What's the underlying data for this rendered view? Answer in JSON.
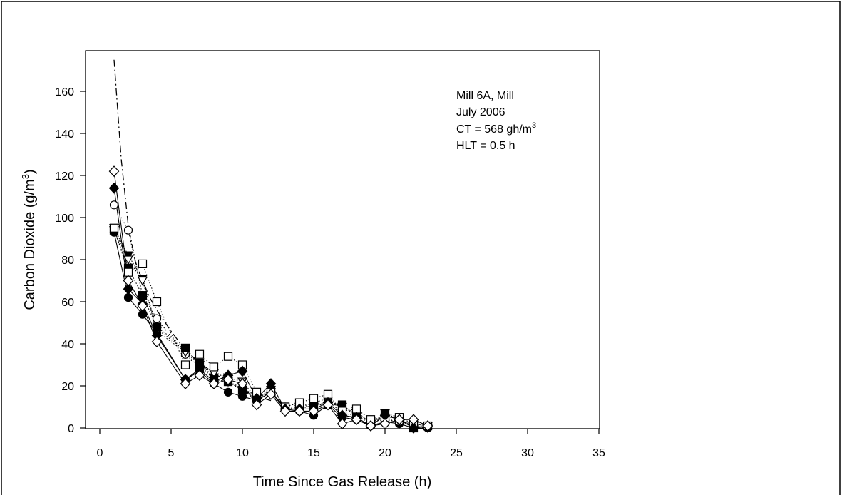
{
  "chart_data": {
    "type": "scatter",
    "title": "",
    "xlabel": "Time Since Gas Release (h)",
    "ylabel": "Carbon Dioxide (g/m3)",
    "ylabel_main": "Carbon Dioxide (g/m",
    "ylabel_sup": "3",
    "ylabel_close": ")",
    "xlim": [
      0,
      35
    ],
    "ylim": [
      0,
      160
    ],
    "xticks": [
      0,
      5,
      10,
      15,
      20,
      25,
      30,
      35
    ],
    "yticks": [
      0,
      20,
      40,
      60,
      80,
      100,
      120,
      140,
      160
    ],
    "grid": false,
    "annotation": {
      "line1": "Mill 6A, Mill",
      "line2": "July 2006",
      "line3_main": "CT = 568 gh/m",
      "line3_sup": "3",
      "line4": "HLT = 0.5 h"
    },
    "x": [
      1,
      2,
      3,
      4,
      6,
      7,
      8,
      9,
      10,
      11,
      12,
      13,
      14,
      15,
      16,
      17,
      18,
      19,
      20,
      21,
      22,
      23
    ],
    "series": [
      {
        "marker": "circle-filled",
        "line": "solid",
        "values": [
          93,
          62,
          54,
          45,
          23,
          27,
          21,
          17,
          15,
          13,
          17,
          9,
          8,
          6,
          11,
          5,
          4,
          1,
          3,
          2,
          0,
          0
        ]
      },
      {
        "marker": "circle-open",
        "line": "dotted",
        "values": [
          106,
          94,
          63,
          52,
          35,
          29,
          24,
          22,
          19,
          15,
          17,
          10,
          10,
          12,
          14,
          9,
          7,
          3,
          5,
          3,
          2,
          1
        ]
      },
      {
        "marker": "triangle-down-filled",
        "line": "dotted",
        "values": [
          95,
          82,
          71,
          47,
          37,
          31,
          24,
          22,
          18,
          14,
          17,
          9,
          9,
          11,
          12,
          10,
          8,
          2,
          7,
          4,
          1,
          1
        ]
      },
      {
        "marker": "triangle-down-open",
        "line": "dotted",
        "values": [
          94,
          80,
          70,
          46,
          36,
          30,
          26,
          24,
          22,
          14,
          18,
          9,
          10,
          10,
          13,
          7,
          6,
          3,
          4,
          3,
          1,
          0
        ]
      },
      {
        "marker": "square-filled",
        "line": "dotted",
        "values": [
          94,
          76,
          63,
          48,
          38,
          30,
          23,
          22,
          18,
          14,
          18,
          10,
          10,
          11,
          11,
          11,
          6,
          2,
          7,
          5,
          0,
          1
        ]
      },
      {
        "marker": "square-open",
        "line": "dotted",
        "values": [
          95,
          74,
          78,
          60,
          30,
          35,
          29,
          34,
          30,
          17,
          17,
          10,
          12,
          14,
          16,
          8,
          9,
          4,
          5,
          5,
          2,
          1
        ]
      },
      {
        "marker": "diamond-filled",
        "line": "solid",
        "values": [
          114,
          66,
          59,
          44,
          23,
          28,
          22,
          25,
          27,
          14,
          21,
          9,
          9,
          9,
          12,
          6,
          5,
          1,
          6,
          4,
          0,
          1
        ]
      },
      {
        "marker": "diamond-open",
        "line": "solid",
        "values": [
          122,
          70,
          58,
          41,
          21,
          25,
          21,
          23,
          21,
          11,
          16,
          8,
          8,
          8,
          11,
          2,
          4,
          1,
          2,
          4,
          4,
          1
        ]
      }
    ],
    "model_curve": {
      "type": "exponential decay",
      "line": "dash-dot",
      "values": [
        [
          1,
          175
        ],
        [
          1.5,
          128
        ],
        [
          2,
          96
        ],
        [
          2.5,
          79
        ],
        [
          3,
          70
        ],
        [
          3.5,
          62
        ],
        [
          4,
          56
        ],
        [
          5,
          46
        ],
        [
          6,
          37
        ],
        [
          7,
          31
        ],
        [
          8,
          26
        ],
        [
          9,
          22
        ],
        [
          10,
          18
        ],
        [
          11,
          15
        ],
        [
          12,
          13
        ]
      ]
    }
  }
}
